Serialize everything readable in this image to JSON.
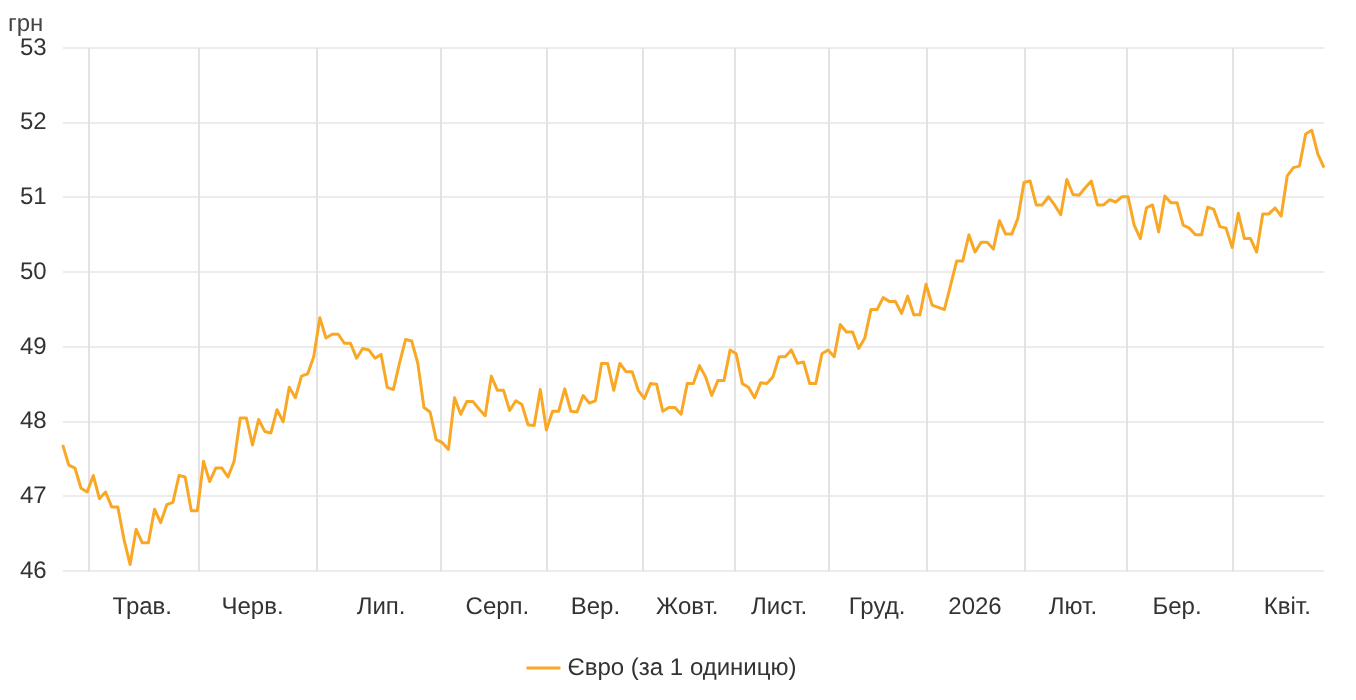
{
  "chart_data": {
    "type": "line",
    "ylabel": "грн",
    "ylim": [
      46,
      53
    ],
    "yticks": [
      46,
      47,
      48,
      49,
      50,
      51,
      52,
      53
    ],
    "categories": [
      null,
      null,
      null,
      null,
      null,
      null,
      null,
      null,
      null,
      null,
      null,
      null,
      null,
      "Трав.",
      null,
      null,
      null,
      null,
      null,
      null,
      null,
      null,
      null,
      null,
      null,
      null,
      null,
      null,
      null,
      null,
      null,
      "Черв.",
      null,
      null,
      null,
      null,
      null,
      null,
      null,
      null,
      null,
      null,
      null,
      null,
      null,
      null,
      null,
      null,
      null,
      null,
      null,
      null,
      "Лип.",
      null,
      null,
      null,
      null,
      null,
      null,
      null,
      null,
      null,
      null,
      null,
      null,
      null,
      null,
      null,
      null,
      null,
      null,
      "Серп.",
      null,
      null,
      null,
      null,
      null,
      null,
      null,
      null,
      null,
      null,
      null,
      null,
      null,
      null,
      null,
      "Вер.",
      null,
      null,
      null,
      null,
      null,
      null,
      null,
      null,
      null,
      null,
      null,
      null,
      null,
      null,
      "Жовт.",
      null,
      null,
      null,
      null,
      null,
      null,
      null,
      null,
      null,
      null,
      null,
      null,
      null,
      null,
      "Лист.",
      null,
      null,
      null,
      null,
      null,
      null,
      null,
      null,
      null,
      null,
      null,
      null,
      null,
      null,
      null,
      "Груд.",
      null,
      null,
      null,
      null,
      null,
      null,
      null,
      null,
      null,
      null,
      null,
      null,
      null,
      null,
      null,
      "2026",
      null,
      null,
      null,
      null,
      null,
      null,
      null,
      null,
      null,
      null,
      null,
      null,
      null,
      null,
      null,
      "Лют.",
      null,
      null,
      null,
      null,
      null,
      null,
      null,
      null,
      null,
      null,
      null,
      null,
      null,
      null,
      null,
      null,
      "Бер.",
      null,
      null,
      null,
      null,
      null,
      null,
      null,
      null,
      null,
      null,
      null,
      null,
      null,
      null,
      null,
      null,
      null,
      "Квіт.",
      null,
      null,
      null,
      null,
      null,
      null
    ],
    "grid": true,
    "legend": "bottom",
    "marker": "none",
    "line_style": "solid",
    "series": [
      {
        "name": "Євро (за 1 одиницю)",
        "color": "#f9a825",
        "values": [
          47.69,
          47.42,
          47.38,
          47.11,
          47.06,
          47.28,
          46.97,
          47.06,
          46.86,
          46.86,
          46.43,
          46.09,
          46.56,
          46.38,
          46.38,
          46.83,
          46.65,
          46.89,
          46.92,
          47.28,
          47.26,
          46.81,
          46.81,
          47.47,
          47.2,
          47.38,
          47.38,
          47.26,
          47.47,
          48.05,
          48.05,
          47.69,
          48.03,
          47.87,
          47.85,
          48.16,
          48.0,
          48.46,
          48.32,
          48.61,
          48.64,
          48.87,
          49.39,
          49.12,
          49.17,
          49.17,
          49.05,
          49.05,
          48.85,
          48.98,
          48.96,
          48.85,
          48.9,
          48.46,
          48.43,
          48.78,
          49.1,
          49.08,
          48.78,
          48.19,
          48.13,
          47.76,
          47.72,
          47.63,
          48.32,
          48.1,
          48.27,
          48.27,
          48.17,
          48.08,
          48.61,
          48.42,
          48.42,
          48.15,
          48.28,
          48.23,
          47.96,
          47.95,
          48.43,
          47.89,
          48.14,
          48.14,
          48.44,
          48.14,
          48.13,
          48.35,
          48.25,
          48.28,
          48.78,
          48.78,
          48.42,
          48.78,
          48.67,
          48.67,
          48.42,
          48.31,
          48.51,
          48.5,
          48.14,
          48.19,
          48.19,
          48.1,
          48.51,
          48.51,
          48.75,
          48.6,
          48.35,
          48.55,
          48.55,
          48.96,
          48.91,
          48.51,
          48.46,
          48.32,
          48.52,
          48.51,
          48.6,
          48.87,
          48.87,
          48.96,
          48.78,
          48.8,
          48.51,
          48.51,
          48.91,
          48.96,
          48.87,
          49.3,
          49.2,
          49.2,
          48.98,
          49.12,
          49.5,
          49.5,
          49.66,
          49.61,
          49.61,
          49.45,
          49.68,
          49.43,
          49.43,
          49.84,
          49.56,
          49.53,
          49.5,
          49.82,
          50.15,
          50.15,
          50.5,
          50.27,
          50.4,
          50.4,
          50.31,
          50.69,
          50.51,
          50.51,
          50.72,
          51.2,
          51.22,
          50.9,
          50.9,
          51.01,
          50.9,
          50.77,
          51.24,
          51.04,
          51.03,
          51.13,
          51.22,
          50.9,
          50.9,
          50.97,
          50.94,
          51.01,
          51.01,
          50.63,
          50.45,
          50.86,
          50.9,
          50.54,
          51.02,
          50.93,
          50.93,
          50.63,
          50.59,
          50.5,
          50.5,
          50.87,
          50.84,
          50.61,
          50.59,
          50.33,
          50.79,
          50.45,
          50.45,
          50.27,
          50.78,
          50.78,
          50.86,
          50.75,
          51.29,
          51.4,
          51.42,
          51.85,
          51.9,
          51.58,
          51.4
        ]
      }
    ]
  }
}
